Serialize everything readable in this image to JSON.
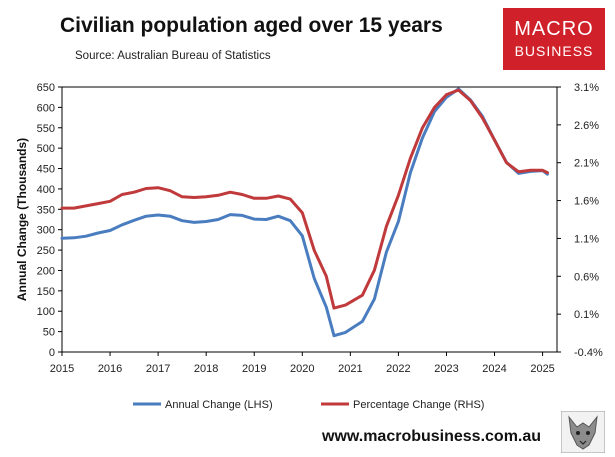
{
  "header": {
    "title": "Civilian population aged over 15 years",
    "source": "Source: Australian Bureau of Statistics"
  },
  "logo": {
    "line1": "MACRO",
    "line2": "BUSINESS",
    "color": "#d0202a"
  },
  "footer": {
    "url": "www.macrobusiness.com.au"
  },
  "chart_data": {
    "type": "line",
    "title": "Civilian population aged over 15 years",
    "ylabel": "Annual Change (Thousands)",
    "y2label": "",
    "ylim": [
      0,
      650
    ],
    "y2lim": [
      -0.4,
      3.1
    ],
    "xlim": [
      2015,
      2025.3
    ],
    "y_ticks": [
      "0",
      "50",
      "100",
      "150",
      "200",
      "250",
      "300",
      "350",
      "400",
      "450",
      "500",
      "550",
      "600",
      "650"
    ],
    "y2_ticks": [
      "-0.4%",
      "0.1%",
      "0.6%",
      "1.1%",
      "1.6%",
      "2.1%",
      "2.6%",
      "3.1%"
    ],
    "x_ticks": [
      "2015",
      "2016",
      "2017",
      "2018",
      "2019",
      "2020",
      "2021",
      "2022",
      "2023",
      "2024",
      "2025"
    ],
    "legend_position": "bottom",
    "grid": false,
    "series": [
      {
        "name": "Annual Change (LHS)",
        "axis": "left",
        "color": "#4a7dbf",
        "points": [
          [
            2015.0,
            279
          ],
          [
            2015.25,
            280
          ],
          [
            2015.5,
            284
          ],
          [
            2015.75,
            292
          ],
          [
            2016.0,
            298
          ],
          [
            2016.25,
            312
          ],
          [
            2016.5,
            323
          ],
          [
            2016.75,
            333
          ],
          [
            2017.0,
            336
          ],
          [
            2017.25,
            333
          ],
          [
            2017.5,
            322
          ],
          [
            2017.75,
            318
          ],
          [
            2018.0,
            320
          ],
          [
            2018.25,
            325
          ],
          [
            2018.5,
            337
          ],
          [
            2018.75,
            335
          ],
          [
            2019.0,
            326
          ],
          [
            2019.25,
            325
          ],
          [
            2019.5,
            333
          ],
          [
            2019.75,
            322
          ],
          [
            2020.0,
            285
          ],
          [
            2020.25,
            180
          ],
          [
            2020.5,
            110
          ],
          [
            2020.66,
            40
          ],
          [
            2020.9,
            48
          ],
          [
            2021.25,
            75
          ],
          [
            2021.5,
            130
          ],
          [
            2021.75,
            245
          ],
          [
            2022.0,
            320
          ],
          [
            2022.25,
            440
          ],
          [
            2022.5,
            525
          ],
          [
            2022.75,
            590
          ],
          [
            2023.0,
            625
          ],
          [
            2023.25,
            645
          ],
          [
            2023.5,
            618
          ],
          [
            2023.75,
            578
          ],
          [
            2024.0,
            520
          ],
          [
            2024.25,
            465
          ],
          [
            2024.5,
            438
          ],
          [
            2024.75,
            443
          ],
          [
            2025.0,
            445
          ],
          [
            2025.1,
            436
          ]
        ]
      },
      {
        "name": "Percentage Change (RHS)",
        "axis": "right",
        "color": "#c0393b",
        "points": [
          [
            2015.0,
            1.5
          ],
          [
            2015.25,
            1.5
          ],
          [
            2015.5,
            1.53
          ],
          [
            2015.75,
            1.56
          ],
          [
            2016.0,
            1.59
          ],
          [
            2016.25,
            1.68
          ],
          [
            2016.5,
            1.71
          ],
          [
            2016.75,
            1.76
          ],
          [
            2017.0,
            1.77
          ],
          [
            2017.25,
            1.73
          ],
          [
            2017.5,
            1.65
          ],
          [
            2017.75,
            1.64
          ],
          [
            2018.0,
            1.65
          ],
          [
            2018.25,
            1.67
          ],
          [
            2018.5,
            1.71
          ],
          [
            2018.75,
            1.68
          ],
          [
            2019.0,
            1.63
          ],
          [
            2019.25,
            1.63
          ],
          [
            2019.5,
            1.66
          ],
          [
            2019.75,
            1.62
          ],
          [
            2020.0,
            1.44
          ],
          [
            2020.25,
            0.94
          ],
          [
            2020.5,
            0.6
          ],
          [
            2020.66,
            0.18
          ],
          [
            2020.9,
            0.22
          ],
          [
            2021.25,
            0.35
          ],
          [
            2021.5,
            0.68
          ],
          [
            2021.75,
            1.26
          ],
          [
            2022.0,
            1.67
          ],
          [
            2022.25,
            2.16
          ],
          [
            2022.5,
            2.56
          ],
          [
            2022.75,
            2.83
          ],
          [
            2023.0,
            3.0
          ],
          [
            2023.25,
            3.06
          ],
          [
            2023.5,
            2.92
          ],
          [
            2023.75,
            2.69
          ],
          [
            2024.0,
            2.4
          ],
          [
            2024.25,
            2.1
          ],
          [
            2024.5,
            1.98
          ],
          [
            2024.75,
            2.0
          ],
          [
            2025.0,
            2.0
          ],
          [
            2025.1,
            1.97
          ]
        ]
      }
    ]
  }
}
